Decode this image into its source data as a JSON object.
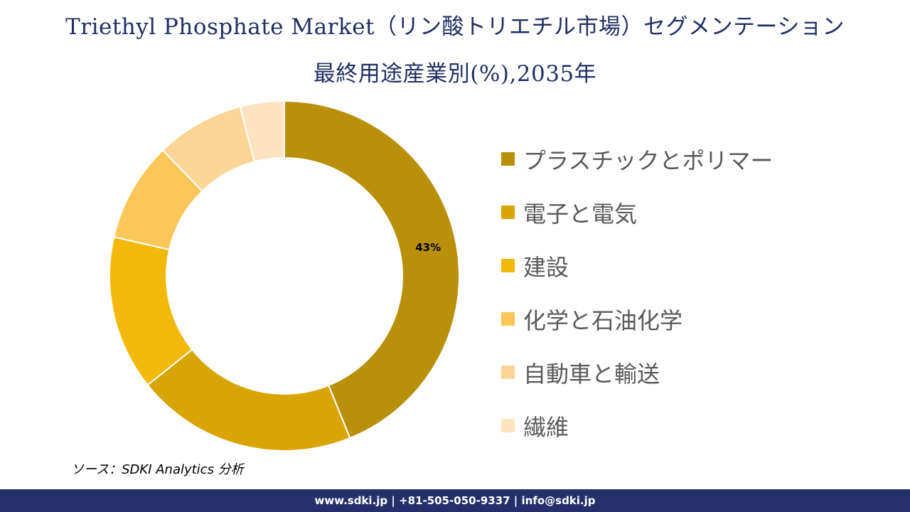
{
  "header": {
    "title_line1": "Triethyl Phosphate Market（リン酸トリエチル市場）セグメンテーション",
    "title_line2": "最終用途産業別(%),2035年"
  },
  "chart_data": {
    "type": "pie",
    "categories": [
      "プラスチックとポリマー",
      "電子と電気",
      "建設",
      "化学と石油化学",
      "自動車と輸送",
      "繊維"
    ],
    "values": [
      43,
      20,
      14,
      9,
      8,
      4
    ],
    "colors": [
      "#b8900a",
      "#d8a505",
      "#f2b80a",
      "#fbc75a",
      "#fdd596",
      "#fde3c0"
    ],
    "data_labels": [
      "43%",
      "",
      "",
      "",
      "",
      ""
    ],
    "legend_position": "right",
    "donut": true
  },
  "source": {
    "text": "ソース：SDKI Analytics 分析"
  },
  "footer": {
    "text": "www.sdki.jp | +81-505-050-9337 | info@sdki.jp",
    "background": "#25306b"
  }
}
